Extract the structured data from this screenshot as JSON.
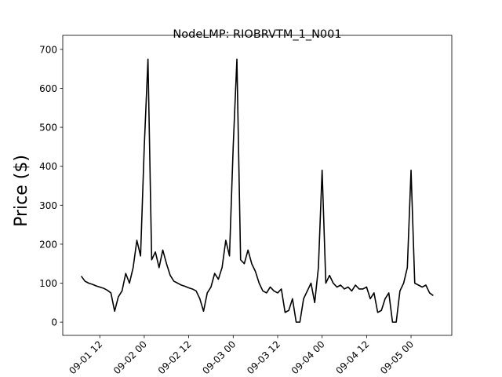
{
  "chart_data": {
    "type": "line",
    "title": "NodeLMP: RIOBRVTM_1_N001",
    "y_label": "Price ($)",
    "x": [
      "09-01 07",
      "09-01 08",
      "09-01 09",
      "09-01 10",
      "09-01 11",
      "09-01 12",
      "09-01 13",
      "09-01 14",
      "09-01 15",
      "09-01 16",
      "09-01 17",
      "09-01 18",
      "09-01 19",
      "09-01 20",
      "09-01 21",
      "09-01 22",
      "09-01 23",
      "09-02 00",
      "09-02 01",
      "09-02 02",
      "09-02 03",
      "09-02 04",
      "09-02 05",
      "09-02 06",
      "09-02 07",
      "09-02 08",
      "09-02 09",
      "09-02 10",
      "09-02 11",
      "09-02 12",
      "09-02 13",
      "09-02 14",
      "09-02 15",
      "09-02 16",
      "09-02 17",
      "09-02 18",
      "09-02 19",
      "09-02 20",
      "09-02 21",
      "09-02 22",
      "09-02 23",
      "09-03 00",
      "09-03 01",
      "09-03 02",
      "09-03 03",
      "09-03 04",
      "09-03 05",
      "09-03 06",
      "09-03 07",
      "09-03 08",
      "09-03 09",
      "09-03 10",
      "09-03 11",
      "09-03 12",
      "09-03 13",
      "09-03 14",
      "09-03 15",
      "09-03 16",
      "09-03 17",
      "09-03 18",
      "09-03 19",
      "09-03 20",
      "09-03 21",
      "09-03 22",
      "09-03 23",
      "09-04 00",
      "09-04 01",
      "09-04 02",
      "09-04 03",
      "09-04 04",
      "09-04 05",
      "09-04 06",
      "09-04 07",
      "09-04 08",
      "09-04 09",
      "09-04 10",
      "09-04 11",
      "09-04 12",
      "09-04 13",
      "09-04 14",
      "09-04 15",
      "09-04 16",
      "09-04 17",
      "09-04 18",
      "09-04 19",
      "09-04 20",
      "09-04 21",
      "09-04 22",
      "09-04 23",
      "09-05 00",
      "09-05 01",
      "09-05 02",
      "09-05 03",
      "09-05 04",
      "09-05 05",
      "09-05 06"
    ],
    "series": [
      {
        "name": "RIOBRVTM_1_N001",
        "color": "#000000",
        "values": [
          118,
          105,
          100,
          97,
          93,
          90,
          87,
          82,
          75,
          28,
          65,
          80,
          125,
          100,
          140,
          210,
          170,
          450,
          675,
          160,
          180,
          140,
          185,
          150,
          120,
          105,
          100,
          95,
          92,
          88,
          85,
          80,
          60,
          28,
          75,
          90,
          125,
          110,
          140,
          210,
          170,
          450,
          675,
          160,
          150,
          185,
          150,
          130,
          100,
          80,
          75,
          90,
          80,
          75,
          85,
          25,
          30,
          60,
          0,
          0,
          60,
          80,
          100,
          50,
          140,
          390,
          100,
          120,
          100,
          90,
          95,
          85,
          90,
          80,
          95,
          85,
          85,
          90,
          60,
          75,
          25,
          30,
          60,
          75,
          0,
          0,
          80,
          100,
          140,
          390,
          100,
          95,
          90,
          95,
          75,
          68
        ]
      }
    ],
    "xlim": [
      "09-01 02",
      "09-05 11"
    ],
    "xticks": [
      "09-01 12",
      "09-02 00",
      "09-02 12",
      "09-03 00",
      "09-03 12",
      "09-04 00",
      "09-04 12",
      "09-05 00"
    ],
    "ylim": [
      -34,
      736
    ],
    "yticks": [
      0,
      100,
      200,
      300,
      400,
      500,
      600,
      700
    ],
    "grid": false
  }
}
